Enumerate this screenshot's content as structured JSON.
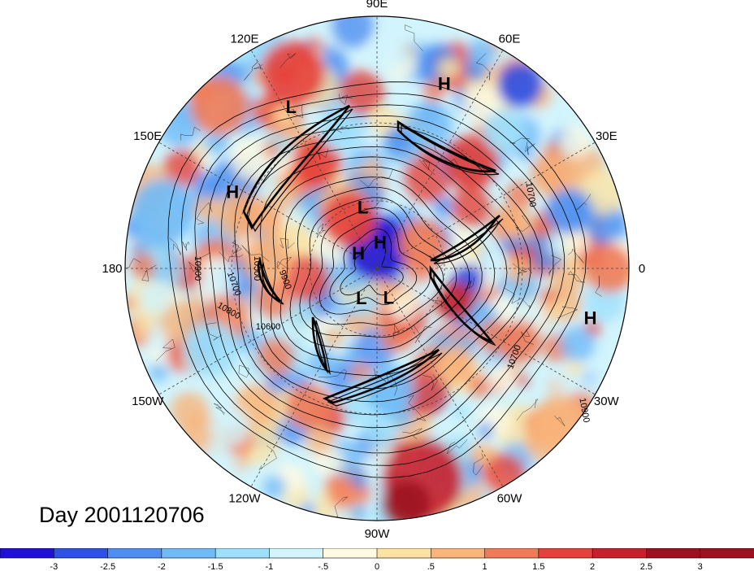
{
  "title": "Day 2001120706",
  "longitude_labels": [
    {
      "lon": 90,
      "text": "90E"
    },
    {
      "lon": 60,
      "text": "60E"
    },
    {
      "lon": 30,
      "text": "30E"
    },
    {
      "lon": 0,
      "text": "0"
    },
    {
      "lon": -30,
      "text": "30W"
    },
    {
      "lon": -60,
      "text": "60W"
    },
    {
      "lon": -90,
      "text": "90W"
    },
    {
      "lon": -120,
      "text": "120W"
    },
    {
      "lon": -150,
      "text": "150W"
    },
    {
      "lon": 180,
      "text": "180"
    },
    {
      "lon": 150,
      "text": "150E"
    },
    {
      "lon": 120,
      "text": "120E"
    }
  ],
  "pressure_centers": [
    {
      "type": "L",
      "lon": 118,
      "lat": 18
    },
    {
      "type": "H",
      "lon": 70,
      "lat": 14
    },
    {
      "type": "H",
      "lon": 152,
      "lat": 24
    },
    {
      "type": "L",
      "lon": 103,
      "lat": 62
    },
    {
      "type": "H",
      "lon": 140,
      "lat": 79
    },
    {
      "type": "H",
      "lon": 83,
      "lat": 78
    },
    {
      "type": "L",
      "lon": -118,
      "lat": 75
    },
    {
      "type": "L",
      "lon": -68,
      "lat": 76
    },
    {
      "type": "H",
      "lon": -13,
      "lat": 8
    }
  ],
  "contour_labels": [
    "10900",
    "10700",
    "10800",
    "10600",
    "9900",
    "10500",
    "10700",
    "10900",
    "10700"
  ],
  "colors": {
    "-3": "#1e10d6",
    "-2.5": "#2e52e6",
    "-2": "#4f8ef0",
    "-1.5": "#6fbaf7",
    "-1": "#9ee0fb",
    "-0.5": "#d2f4fc",
    "0": "#fffbe3",
    "0.5": "#fce3a4",
    "1": "#f8b47a",
    "1.5": "#f07b58",
    "2": "#e5413a",
    "2.5": "#c7202c",
    "3": "#9c0f1e"
  },
  "colorbar": {
    "labels": [
      "-3",
      "-2.5",
      "-2",
      "-1.5",
      "-1",
      "-.5",
      "0",
      ".5",
      "1",
      "1.5",
      "2",
      "2.5",
      "3"
    ],
    "colors": [
      "#1e10d6",
      "#2e52e6",
      "#4f8ef0",
      "#6fbaf7",
      "#9ee0fb",
      "#d2f4fc",
      "#fffbe3",
      "#fce3a4",
      "#f8b47a",
      "#f07b58",
      "#e5413a",
      "#c7202c",
      "#9c0f1e",
      "#9c0f1e"
    ]
  }
}
